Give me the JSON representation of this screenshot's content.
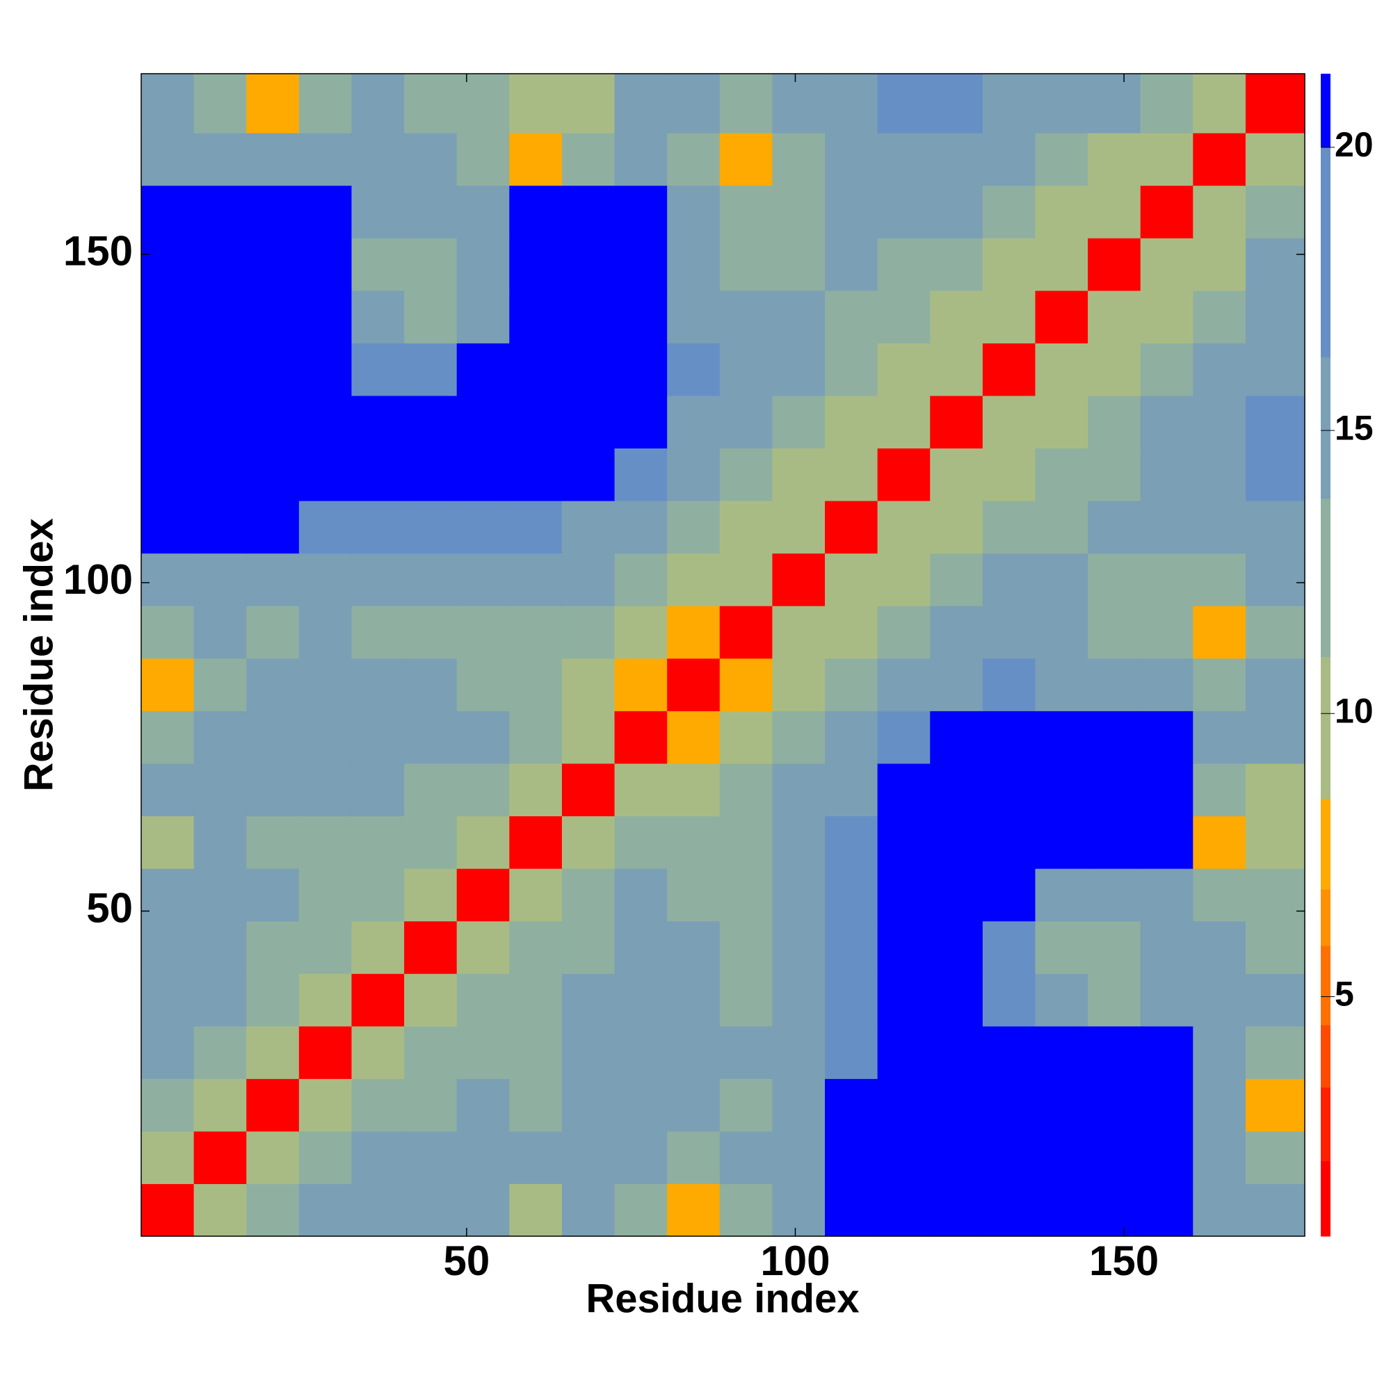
{
  "chart_data": {
    "type": "heatmap",
    "x_label": "Residue index",
    "y_label": "Residue index",
    "xbins": [
      0.5,
      8.5,
      16.5,
      24.5,
      32.5,
      40.5,
      48.5,
      56.5,
      64.5,
      72.5,
      80.5,
      88.5,
      96.5,
      104.5,
      112.5,
      120.5,
      128.5,
      136.5,
      144.5,
      152.5,
      160.5,
      168.5,
      177.5
    ],
    "ybins": [
      0.5,
      8.5,
      16.5,
      24.5,
      32.5,
      40.5,
      48.5,
      56.5,
      64.5,
      72.5,
      80.5,
      88.5,
      96.5,
      104.5,
      112.5,
      120.5,
      128.5,
      136.5,
      144.5,
      152.5,
      160.5,
      168.5,
      177.5
    ],
    "xlim": [
      0.5,
      177.5
    ],
    "ylim": [
      0.5,
      177.5
    ],
    "xticks": [
      50,
      100,
      150
    ],
    "yticks": [
      50,
      100,
      150
    ],
    "z": [
      [
        2,
        9,
        12,
        14,
        16,
        15,
        15,
        9,
        14,
        12,
        8,
        13,
        15,
        21,
        21,
        21,
        21,
        21,
        21,
        21,
        16,
        15
      ],
      [
        9,
        2,
        9,
        12,
        14,
        15,
        14,
        15,
        16,
        14,
        13,
        14,
        16,
        21,
        21,
        21,
        21,
        21,
        21,
        21,
        15,
        12
      ],
      [
        12,
        9,
        2,
        9,
        12,
        13,
        14,
        13,
        15,
        16,
        14,
        13,
        15,
        21,
        21,
        21,
        21,
        21,
        21,
        21,
        14,
        7
      ],
      [
        14,
        12,
        9,
        2,
        9,
        12,
        13,
        12,
        14,
        15,
        15,
        14,
        15,
        18,
        21,
        21,
        21,
        21,
        21,
        21,
        15,
        13
      ],
      [
        16,
        14,
        12,
        9,
        2,
        9,
        12,
        13,
        14,
        15,
        14,
        13,
        15,
        18,
        21,
        21,
        18,
        14,
        13,
        15,
        16,
        15
      ],
      [
        15,
        15,
        13,
        12,
        9,
        2,
        9,
        12,
        13,
        16,
        14,
        13,
        14,
        17,
        21,
        21,
        19,
        13,
        12,
        14,
        14,
        13
      ],
      [
        15,
        14,
        14,
        13,
        12,
        9,
        2,
        9,
        12,
        14,
        13,
        12,
        15,
        18,
        21,
        21,
        21,
        16,
        15,
        16,
        13,
        12
      ],
      [
        9,
        15,
        13,
        12,
        13,
        12,
        9,
        2,
        9,
        12,
        13,
        12,
        14,
        17,
        21,
        21,
        21,
        21,
        21,
        21,
        8,
        11
      ],
      [
        14,
        16,
        15,
        14,
        14,
        13,
        12,
        9,
        2,
        9,
        11,
        12,
        14,
        16,
        21,
        21,
        21,
        21,
        21,
        21,
        13,
        9
      ],
      [
        12,
        14,
        16,
        15,
        15,
        16,
        14,
        12,
        9,
        2,
        8,
        11,
        13,
        15,
        17,
        21,
        21,
        21,
        21,
        21,
        16,
        15
      ],
      [
        8,
        13,
        14,
        15,
        14,
        14,
        13,
        13,
        11,
        8,
        2,
        8,
        10,
        12,
        14,
        16,
        17,
        15,
        14,
        14,
        13,
        14
      ],
      [
        13,
        14,
        13,
        14,
        13,
        13,
        12,
        12,
        12,
        11,
        8,
        2,
        9,
        11,
        13,
        14,
        16,
        14,
        12,
        12,
        8,
        13
      ],
      [
        15,
        16,
        15,
        15,
        15,
        14,
        15,
        14,
        14,
        13,
        10,
        9,
        2,
        9,
        11,
        12,
        14,
        14,
        13,
        13,
        12,
        15
      ],
      [
        21,
        21,
        21,
        18,
        18,
        17,
        18,
        17,
        16,
        15,
        12,
        11,
        9,
        2,
        9,
        11,
        12,
        13,
        14,
        15,
        14,
        16
      ],
      [
        21,
        21,
        21,
        21,
        21,
        21,
        21,
        21,
        21,
        17,
        14,
        13,
        11,
        9,
        2,
        9,
        11,
        12,
        13,
        15,
        16,
        17
      ],
      [
        21,
        21,
        21,
        21,
        21,
        21,
        21,
        21,
        21,
        21,
        16,
        14,
        12,
        11,
        9,
        2,
        9,
        11,
        12,
        14,
        15,
        17
      ],
      [
        21,
        21,
        21,
        21,
        18,
        19,
        21,
        21,
        21,
        21,
        17,
        16,
        14,
        12,
        11,
        9,
        2,
        9,
        11,
        12,
        14,
        16
      ],
      [
        21,
        21,
        21,
        21,
        14,
        13,
        16,
        21,
        21,
        21,
        15,
        14,
        14,
        13,
        12,
        11,
        9,
        2,
        9,
        11,
        13,
        15
      ],
      [
        21,
        21,
        21,
        21,
        13,
        12,
        15,
        21,
        21,
        21,
        14,
        12,
        13,
        14,
        13,
        12,
        11,
        9,
        2,
        9,
        11,
        14
      ],
      [
        21,
        21,
        21,
        21,
        15,
        14,
        16,
        21,
        21,
        21,
        14,
        12,
        13,
        15,
        15,
        14,
        12,
        11,
        9,
        2,
        9,
        12
      ],
      [
        16,
        15,
        14,
        15,
        16,
        14,
        13,
        8,
        13,
        16,
        13,
        8,
        12,
        14,
        16,
        15,
        14,
        13,
        11,
        9,
        2,
        9
      ],
      [
        15,
        12,
        7,
        13,
        15,
        13,
        12,
        11,
        9,
        15,
        14,
        13,
        15,
        16,
        17,
        17,
        16,
        15,
        14,
        12,
        9,
        2
      ]
    ],
    "colorbar": {
      "lim": [
        0.77,
        21.3
      ],
      "ticks": [
        5,
        10,
        15,
        20
      ],
      "levels": [
        0.77,
        2.1,
        3.4,
        4.5,
        5.9,
        6.9,
        8.5,
        11,
        13.8,
        16.3,
        20,
        21.3
      ],
      "colors": [
        "#ff0000",
        "#ff2000",
        "#ff4a00",
        "#ff7000",
        "#ff9000",
        "#ffaa00",
        "#a9bb85",
        "#8fb0a0",
        "#7b9fb5",
        "#6690c5",
        "#0000ff"
      ]
    }
  }
}
